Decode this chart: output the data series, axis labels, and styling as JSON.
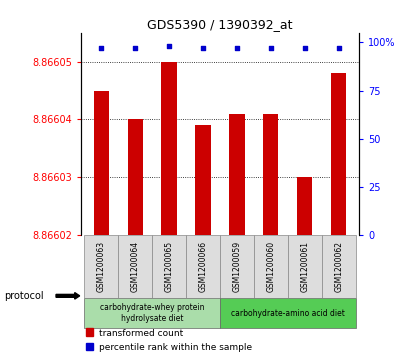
{
  "title": "GDS5390 / 1390392_at",
  "samples": [
    "GSM1200063",
    "GSM1200064",
    "GSM1200065",
    "GSM1200066",
    "GSM1200059",
    "GSM1200060",
    "GSM1200061",
    "GSM1200062"
  ],
  "red_values": [
    8.866045,
    8.86604,
    8.86605,
    8.866039,
    8.866041,
    8.866041,
    8.86603,
    8.866048
  ],
  "blue_values": [
    97,
    97,
    98,
    97,
    97,
    97,
    97,
    97
  ],
  "ylim_left": [
    8.86602,
    8.866055
  ],
  "ylim_right": [
    0,
    105
  ],
  "yticks_left": [
    8.86602,
    8.86603,
    8.86604,
    8.86605
  ],
  "ytick_labels_left": [
    "8.86602",
    "8.86603",
    "8.86604",
    "8.86605"
  ],
  "yticks_right": [
    0,
    25,
    50,
    75,
    100
  ],
  "ytick_labels_right": [
    "0",
    "25",
    "50",
    "75",
    "100%"
  ],
  "bar_color": "#cc0000",
  "dot_color": "#0000cc",
  "group1_label_line1": "carbohydrate-whey protein",
  "group1_label_line2": "hydrolysate diet",
  "group2_label": "carbohydrate-amino acid diet",
  "group1_color": "#aaddaa",
  "group2_color": "#55cc55",
  "group1_indices": [
    0,
    1,
    2,
    3
  ],
  "group2_indices": [
    4,
    5,
    6,
    7
  ],
  "protocol_label": "protocol",
  "legend_red": "transformed count",
  "legend_blue": "percentile rank within the sample",
  "base_value": 8.86602
}
